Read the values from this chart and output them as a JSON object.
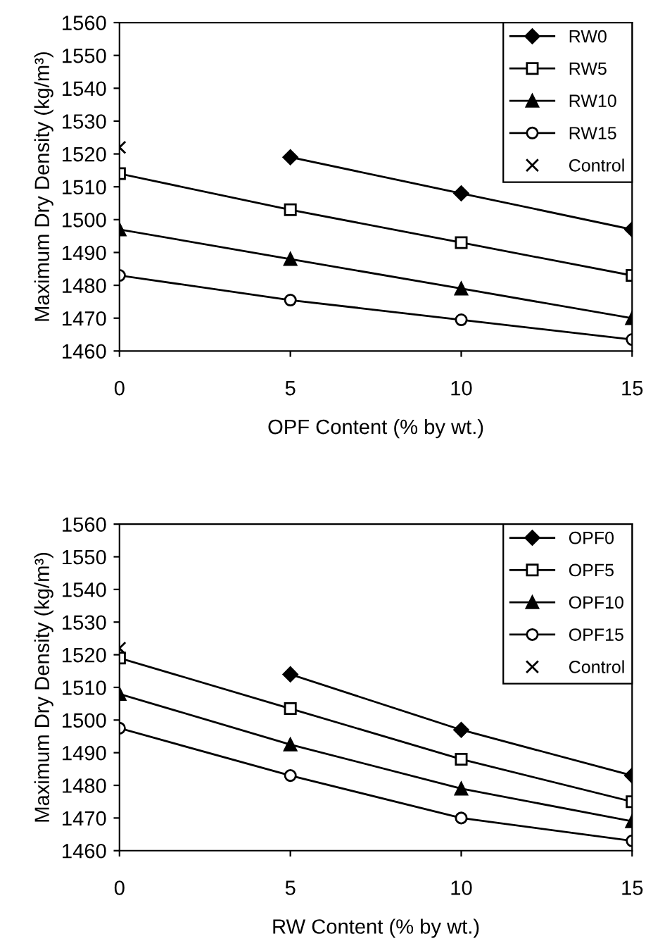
{
  "chart_data": [
    {
      "type": "line",
      "xlabel": "OPF Content (% by wt.)",
      "ylabel": "Maximum Dry Density (kg/m³)",
      "x": [
        0,
        5,
        10,
        15
      ],
      "xlim": [
        0,
        15
      ],
      "xticks": [
        0,
        5,
        10,
        15
      ],
      "ylim": [
        1460,
        1560
      ],
      "yticks": [
        1460,
        1470,
        1480,
        1490,
        1500,
        1510,
        1520,
        1530,
        1540,
        1550,
        1560
      ],
      "grid": false,
      "legend": "top right",
      "series": [
        {
          "name": "RW0",
          "color": "#000000",
          "marker": "diamond",
          "values": [
            null,
            1519,
            1508,
            1497
          ]
        },
        {
          "name": "RW5",
          "color": "#000000",
          "marker": "square",
          "values": [
            1514,
            1503,
            1493,
            1483
          ]
        },
        {
          "name": "RW10",
          "color": "#000000",
          "marker": "triangle",
          "values": [
            1497,
            1488,
            1479,
            1470
          ]
        },
        {
          "name": "RW15",
          "color": "#000000",
          "marker": "circle",
          "values": [
            1483,
            1475.5,
            1469.5,
            1463.5
          ]
        },
        {
          "name": "Control",
          "type": "scatter",
          "color": "#000000",
          "marker": "cross",
          "x": [
            0
          ],
          "values": [
            1522
          ]
        }
      ]
    },
    {
      "type": "line",
      "xlabel": "RW Content (% by wt.)",
      "ylabel": "Maximum Dry Density (kg/m³)",
      "x": [
        0,
        5,
        10,
        15
      ],
      "xlim": [
        0,
        15
      ],
      "xticks": [
        0,
        5,
        10,
        15
      ],
      "ylim": [
        1460,
        1560
      ],
      "yticks": [
        1460,
        1470,
        1480,
        1490,
        1500,
        1510,
        1520,
        1530,
        1540,
        1550,
        1560
      ],
      "grid": false,
      "legend": "top right",
      "series": [
        {
          "name": "OPF0",
          "color": "#000000",
          "marker": "diamond",
          "values": [
            null,
            1514,
            1497,
            1483
          ]
        },
        {
          "name": "OPF5",
          "color": "#000000",
          "marker": "square",
          "values": [
            1519,
            1503.5,
            1488,
            1475
          ]
        },
        {
          "name": "OPF10",
          "color": "#000000",
          "marker": "triangle",
          "values": [
            1508,
            1492.5,
            1479,
            1469
          ]
        },
        {
          "name": "OPF15",
          "color": "#000000",
          "marker": "circle",
          "values": [
            1497.5,
            1483,
            1470,
            1463
          ]
        },
        {
          "name": "Control",
          "type": "scatter",
          "color": "#000000",
          "marker": "cross",
          "x": [
            0
          ],
          "values": [
            1522
          ]
        }
      ]
    }
  ]
}
